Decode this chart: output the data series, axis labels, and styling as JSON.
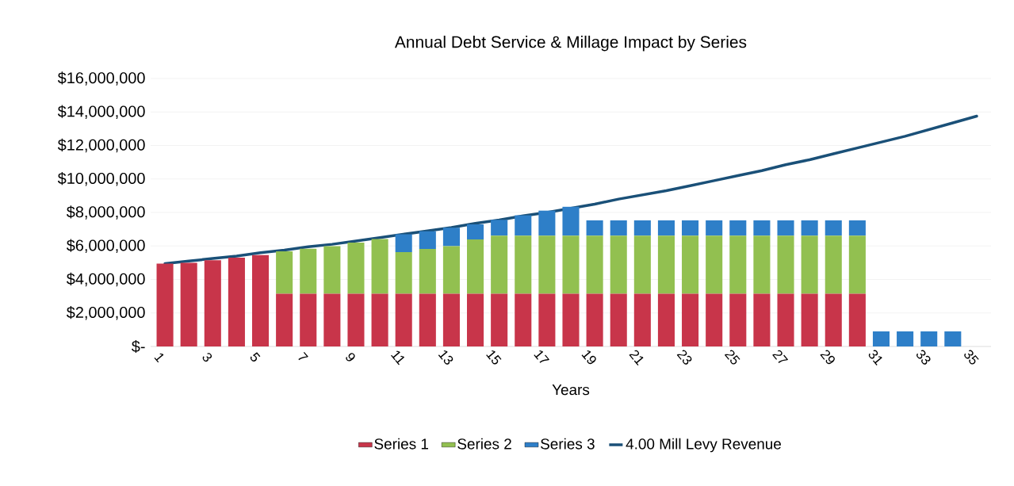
{
  "chart_data": {
    "type": "bar",
    "stacked": true,
    "title": "Annual Debt Service & Millage Impact by Series",
    "xlabel": "Years",
    "categories": [
      "1",
      null,
      "3",
      null,
      "5",
      null,
      "7",
      null,
      "9",
      null,
      "11",
      null,
      "13",
      null,
      "15",
      null,
      "17",
      null,
      "19",
      null,
      "21",
      null,
      "23",
      null,
      "25",
      null,
      "27",
      null,
      "29",
      null,
      "31",
      null,
      "33",
      null,
      "35"
    ],
    "series": [
      {
        "name": "Series 1",
        "color": "#c8354a",
        "values": [
          4950000,
          5000000,
          5150000,
          5300000,
          5450000,
          3150000,
          3150000,
          3150000,
          3150000,
          3150000,
          3150000,
          3150000,
          3150000,
          3150000,
          3150000,
          3150000,
          3150000,
          3150000,
          3150000,
          3150000,
          3150000,
          3150000,
          3150000,
          3150000,
          3150000,
          3150000,
          3150000,
          3150000,
          3150000,
          3150000,
          null,
          null,
          null,
          null,
          null
        ]
      },
      {
        "name": "Series 2",
        "color": "#92c050",
        "values": [
          null,
          null,
          null,
          null,
          null,
          2530000,
          2690000,
          2840000,
          3050000,
          3260000,
          2480000,
          2670000,
          2840000,
          3240000,
          3470000,
          3470000,
          3470000,
          3470000,
          3470000,
          3470000,
          3470000,
          3470000,
          3470000,
          3470000,
          3470000,
          3470000,
          3470000,
          3470000,
          3470000,
          3470000,
          null,
          null,
          null,
          null,
          null
        ]
      },
      {
        "name": "Series 3",
        "color": "#2e7fc8",
        "values": [
          null,
          null,
          null,
          null,
          null,
          null,
          null,
          null,
          null,
          null,
          1070000,
          1060000,
          1100000,
          900000,
          940000,
          1210000,
          1490000,
          1720000,
          910000,
          910000,
          910000,
          910000,
          910000,
          910000,
          910000,
          910000,
          910000,
          910000,
          910000,
          910000,
          900000,
          900000,
          900000,
          900000,
          null
        ]
      },
      {
        "name": "4.00 Mill Levy Revenue",
        "type": "line",
        "color": "#1a5078",
        "values": [
          4950000,
          5100000,
          5250000,
          5400000,
          5600000,
          5750000,
          5950000,
          6100000,
          6300000,
          6500000,
          6700000,
          6900000,
          7100000,
          7350000,
          7550000,
          7800000,
          8000000,
          8250000,
          8500000,
          8800000,
          9050000,
          9300000,
          9600000,
          9900000,
          10200000,
          10500000,
          10850000,
          11150000,
          11500000,
          11850000,
          12200000,
          12550000,
          12950000,
          13350000,
          13750000
        ]
      }
    ],
    "ylim": [
      0,
      16000000
    ],
    "yticks": [
      {
        "value": 0,
        "label": "$-"
      },
      {
        "value": 2000000,
        "label": "$2,000,000"
      },
      {
        "value": 4000000,
        "label": "$4,000,000"
      },
      {
        "value": 6000000,
        "label": "$6,000,000"
      },
      {
        "value": 8000000,
        "label": "$8,000,000"
      },
      {
        "value": 10000000,
        "label": "$10,000,000"
      },
      {
        "value": 12000000,
        "label": "$12,000,000"
      },
      {
        "value": 14000000,
        "label": "$14,000,000"
      },
      {
        "value": 16000000,
        "label": "$16,000,000"
      }
    ],
    "grid": "y",
    "legend": "bottom",
    "marker": "none",
    "line_style": "solid"
  }
}
